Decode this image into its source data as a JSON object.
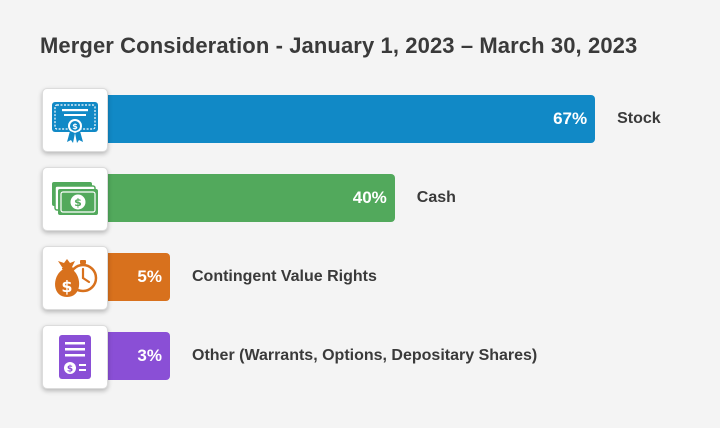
{
  "chart_data": {
    "type": "bar",
    "orientation": "horizontal",
    "title": "Merger Consideration - January 1, 2023 – March 30, 2023",
    "categories": [
      "Stock",
      "Cash",
      "Contingent Value Rights",
      "Other (Warrants, Options, Depositary Shares)"
    ],
    "values": [
      67,
      40,
      5,
      3
    ],
    "value_labels": [
      "67%",
      "40%",
      "5%",
      "3%"
    ],
    "unit": "%",
    "colors": [
      "#1189c6",
      "#52a95c",
      "#d8711d",
      "#8a4fd6"
    ],
    "icons": [
      "stock-certificate-icon",
      "cash-bills-icon",
      "money-bag-clock-icon",
      "document-dollar-icon"
    ],
    "xlim": [
      0,
      100
    ],
    "grid": false,
    "legend": "none"
  }
}
